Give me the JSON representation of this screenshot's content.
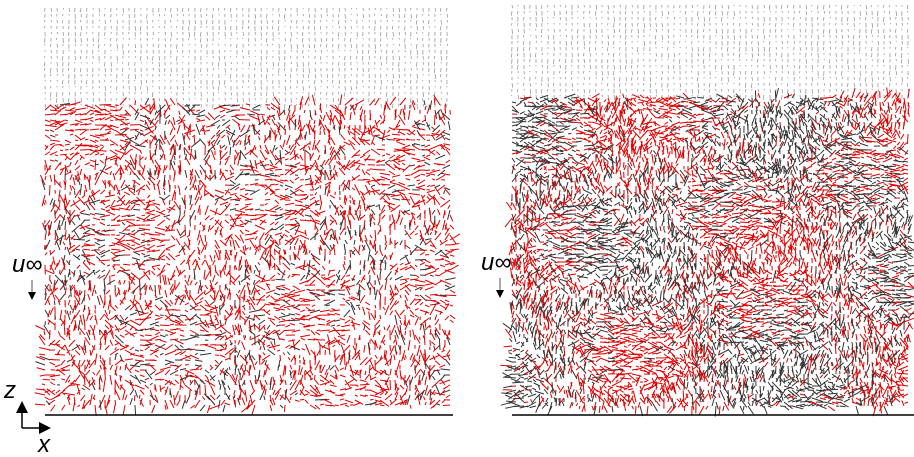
{
  "panels": [
    {
      "freestream_label": "u∞"
    },
    {
      "freestream_label": "u∞"
    }
  ],
  "axes": {
    "vertical_label": "z",
    "horizontal_label": "x"
  }
}
